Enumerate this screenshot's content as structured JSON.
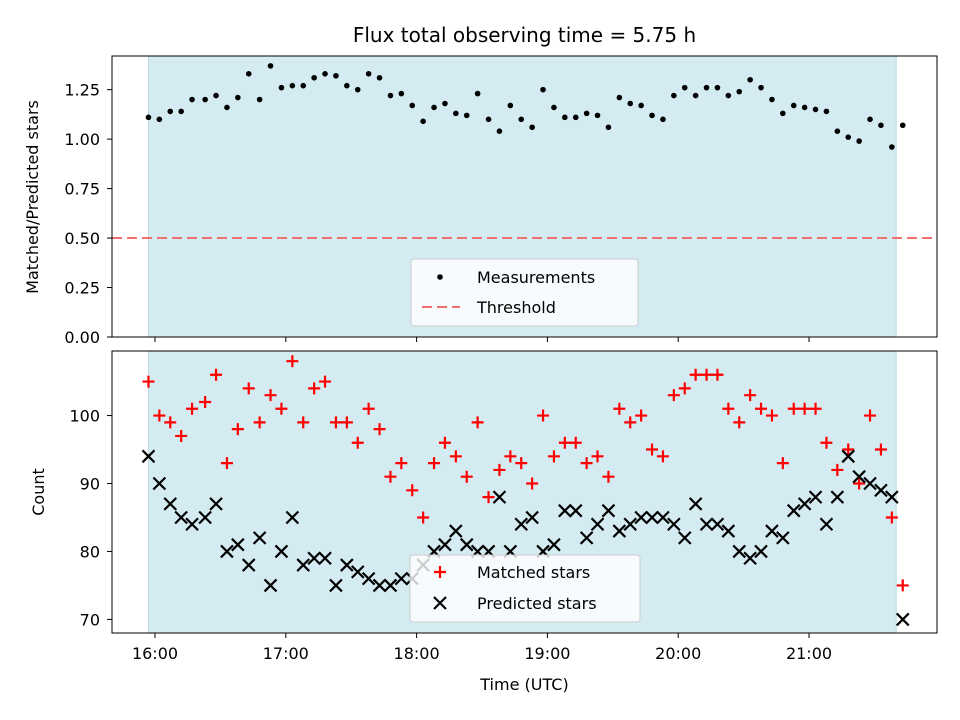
{
  "title": "Flux total observing time = 5.75 h",
  "colors": {
    "shade": "#d4ebf2",
    "threshold": "#f07070",
    "matched": "#ff0000",
    "predicted": "#000000",
    "measurement": "#000000"
  },
  "chart_data": [
    {
      "type": "scatter",
      "panel": "top",
      "ylabel": "Matched/Predicted stars",
      "ylim": [
        0,
        1.42
      ],
      "yticks": [
        "0.00",
        "0.25",
        "0.50",
        "0.75",
        "1.00",
        "1.25"
      ],
      "shaded_span": [
        "15:57",
        "21:40"
      ],
      "threshold": {
        "label": "Threshold",
        "value": 0.5
      },
      "legend": {
        "position": "lower-center",
        "entries": [
          "Measurements",
          "Threshold"
        ]
      },
      "series": [
        {
          "name": "Measurements",
          "x": [
            "15:57",
            "16:02",
            "16:07",
            "16:12",
            "16:17",
            "16:23",
            "16:28",
            "16:33",
            "16:38",
            "16:43",
            "16:48",
            "16:53",
            "16:58",
            "17:03",
            "17:08",
            "17:13",
            "17:18",
            "17:23",
            "17:28",
            "17:33",
            "17:38",
            "17:43",
            "17:48",
            "17:53",
            "17:58",
            "18:03",
            "18:08",
            "18:13",
            "18:18",
            "18:23",
            "18:28",
            "18:33",
            "18:38",
            "18:43",
            "18:48",
            "18:53",
            "18:58",
            "19:03",
            "19:08",
            "19:13",
            "19:18",
            "19:23",
            "19:28",
            "19:33",
            "19:38",
            "19:43",
            "19:48",
            "19:53",
            "19:58",
            "20:03",
            "20:08",
            "20:13",
            "20:18",
            "20:23",
            "20:28",
            "20:33",
            "20:38",
            "20:43",
            "20:48",
            "20:53",
            "20:58",
            "21:03",
            "21:08",
            "21:13",
            "21:18",
            "21:23",
            "21:28",
            "21:33",
            "21:38",
            "21:43"
          ],
          "y": [
            1.11,
            1.1,
            1.14,
            1.14,
            1.2,
            1.2,
            1.22,
            1.16,
            1.21,
            1.33,
            1.2,
            1.37,
            1.26,
            1.27,
            1.27,
            1.31,
            1.33,
            1.32,
            1.27,
            1.25,
            1.33,
            1.31,
            1.22,
            1.23,
            1.17,
            1.09,
            1.16,
            1.18,
            1.13,
            1.12,
            1.23,
            1.1,
            1.04,
            1.17,
            1.1,
            1.06,
            1.25,
            1.16,
            1.11,
            1.11,
            1.13,
            1.12,
            1.06,
            1.21,
            1.18,
            1.17,
            1.12,
            1.1,
            1.22,
            1.26,
            1.22,
            1.26,
            1.26,
            1.22,
            1.24,
            1.3,
            1.26,
            1.2,
            1.13,
            1.17,
            1.16,
            1.15,
            1.14,
            1.04,
            1.01,
            0.99,
            1.1,
            1.07,
            0.96,
            1.07
          ]
        }
      ]
    },
    {
      "type": "scatter",
      "panel": "bottom",
      "xlabel": "Time (UTC)",
      "ylabel": "Count",
      "ylim": [
        68,
        109.5
      ],
      "yticks": [
        "70",
        "80",
        "90",
        "100"
      ],
      "xticks": [
        "16:00",
        "17:00",
        "18:00",
        "19:00",
        "20:00",
        "21:00"
      ],
      "shaded_span": [
        "15:57",
        "21:40"
      ],
      "legend": {
        "position": "lower-center",
        "entries": [
          "Matched stars",
          "Predicted stars"
        ]
      },
      "x": [
        "15:57",
        "16:02",
        "16:07",
        "16:12",
        "16:17",
        "16:23",
        "16:28",
        "16:33",
        "16:38",
        "16:43",
        "16:48",
        "16:53",
        "16:58",
        "17:03",
        "17:08",
        "17:13",
        "17:18",
        "17:23",
        "17:28",
        "17:33",
        "17:38",
        "17:43",
        "17:48",
        "17:53",
        "17:58",
        "18:03",
        "18:08",
        "18:13",
        "18:18",
        "18:23",
        "18:28",
        "18:33",
        "18:38",
        "18:43",
        "18:48",
        "18:53",
        "18:58",
        "19:03",
        "19:08",
        "19:13",
        "19:18",
        "19:23",
        "19:28",
        "19:33",
        "19:38",
        "19:43",
        "19:48",
        "19:53",
        "19:58",
        "20:03",
        "20:08",
        "20:13",
        "20:18",
        "20:23",
        "20:28",
        "20:33",
        "20:38",
        "20:43",
        "20:48",
        "20:53",
        "20:58",
        "21:03",
        "21:08",
        "21:13",
        "21:18",
        "21:23",
        "21:28",
        "21:33",
        "21:38",
        "21:43"
      ],
      "series": [
        {
          "name": "Matched stars",
          "values": [
            105,
            100,
            99,
            97,
            101,
            102,
            106,
            93,
            98,
            104,
            99,
            103,
            101,
            108,
            99,
            104,
            105,
            99,
            99,
            96,
            101,
            98,
            91,
            93,
            89,
            85,
            93,
            96,
            94,
            91,
            99,
            88,
            92,
            94,
            93,
            90,
            100,
            94,
            96,
            96,
            93,
            94,
            91,
            101,
            99,
            100,
            95,
            94,
            103,
            104,
            106,
            106,
            106,
            101,
            99,
            103,
            101,
            100,
            93,
            101,
            101,
            101,
            96,
            92,
            95,
            90,
            100,
            95,
            85,
            75
          ]
        },
        {
          "name": "Predicted stars",
          "values": [
            94,
            90,
            87,
            85,
            84,
            85,
            87,
            80,
            81,
            78,
            82,
            75,
            80,
            85,
            78,
            79,
            79,
            75,
            78,
            77,
            76,
            75,
            75,
            76,
            76,
            78,
            80,
            81,
            83,
            81,
            80,
            80,
            88,
            80,
            84,
            85,
            80,
            81,
            86,
            86,
            82,
            84,
            86,
            83,
            84,
            85,
            85,
            85,
            84,
            82,
            87,
            84,
            84,
            83,
            80,
            79,
            80,
            83,
            82,
            86,
            87,
            88,
            84,
            88,
            94,
            91,
            90,
            89,
            88,
            70
          ]
        }
      ]
    }
  ]
}
